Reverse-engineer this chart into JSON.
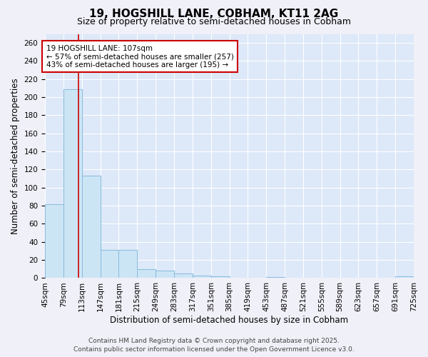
{
  "title_line1": "19, HOGSHILL LANE, COBHAM, KT11 2AG",
  "title_line2": "Size of property relative to semi-detached houses in Cobham",
  "xlabel": "Distribution of semi-detached houses by size in Cobham",
  "ylabel": "Number of semi-detached properties",
  "bar_color": "#cce5f5",
  "bar_edge_color": "#88bbdd",
  "bar_edge_width": 0.7,
  "background_color": "#dde8f8",
  "grid_color": "#ffffff",
  "red_line_color": "#cc0000",
  "annotation_box_color": "#cc0000",
  "fig_background": "#f0f0f8",
  "categories": [
    "45sqm",
    "79sqm",
    "113sqm",
    "147sqm",
    "181sqm",
    "215sqm",
    "249sqm",
    "283sqm",
    "317sqm",
    "351sqm",
    "385sqm",
    "419sqm",
    "453sqm",
    "487sqm",
    "521sqm",
    "555sqm",
    "589sqm",
    "623sqm",
    "657sqm",
    "691sqm",
    "725sqm"
  ],
  "bar_left_edges": [
    45,
    79,
    113,
    147,
    181,
    215,
    249,
    283,
    317,
    351,
    385,
    419,
    453,
    487,
    521,
    555,
    589,
    623,
    657,
    691
  ],
  "bar_values": [
    82,
    209,
    113,
    31,
    31,
    10,
    8,
    5,
    3,
    2,
    0,
    0,
    1,
    0,
    0,
    0,
    0,
    0,
    0,
    2
  ],
  "bin_width": 34,
  "red_line_x": 107,
  "annotation_line1": "19 HOGSHILL LANE: 107sqm",
  "annotation_line2": "← 57% of semi-detached houses are smaller (257)",
  "annotation_line3": "43% of semi-detached houses are larger (195) →",
  "ylim": [
    0,
    270
  ],
  "yticks": [
    0,
    20,
    40,
    60,
    80,
    100,
    120,
    140,
    160,
    180,
    200,
    220,
    240,
    260
  ],
  "footer_line1": "Contains HM Land Registry data © Crown copyright and database right 2025.",
  "footer_line2": "Contains public sector information licensed under the Open Government Licence v3.0.",
  "title_fontsize": 11,
  "subtitle_fontsize": 9,
  "axis_label_fontsize": 8.5,
  "tick_fontsize": 7.5,
  "annotation_fontsize": 7.5,
  "footer_fontsize": 6.5
}
